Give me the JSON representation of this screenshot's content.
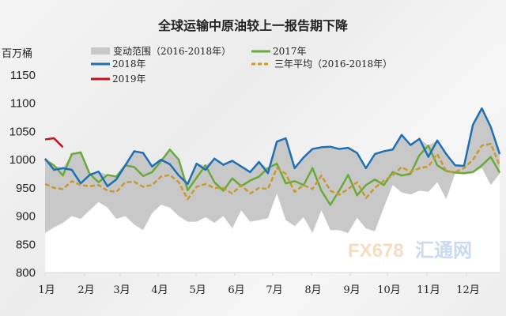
{
  "chart_data": {
    "type": "line",
    "title": "全球运输中原油较上一报告期下降",
    "ylabel": "百万桶",
    "ylim": [
      800,
      1150
    ],
    "yticks": [
      "800",
      "850",
      "900",
      "950",
      "1000",
      "1050",
      "1100",
      "1150"
    ],
    "xticks": [
      "1月",
      "2月",
      "3月",
      "4月",
      "5月",
      "6月",
      "7月",
      "8月",
      "9月",
      "10月",
      "11月",
      "12月"
    ],
    "x_unit": "week",
    "range": {
      "name": "变动范围（2016-2018年）",
      "color": "#c8c8c8",
      "low": [
        870,
        880,
        888,
        900,
        895,
        910,
        925,
        915,
        895,
        900,
        885,
        875,
        905,
        920,
        915,
        900,
        890,
        890,
        898,
        888,
        900,
        878,
        910,
        890,
        893,
        896,
        940,
        893,
        882,
        898,
        870,
        910,
        875,
        875,
        870,
        897,
        878,
        873,
        915,
        955,
        942,
        938,
        945,
        943,
        960,
        930,
        975,
        977,
        977,
        985,
        955,
        975
      ],
      "high": [
        1002,
        990,
        985,
        1010,
        1013,
        975,
        979,
        973,
        970,
        990,
        1015,
        1012,
        988,
        1000,
        1018,
        1000,
        957,
        993,
        990,
        1002,
        991,
        998,
        988,
        978,
        996,
        985,
        1032,
        1038,
        985,
        1004,
        1019,
        1022,
        1023,
        1019,
        1021,
        1012,
        985,
        1010,
        1015,
        1018,
        1044,
        1026,
        1037,
        1025,
        1034,
        1010,
        990,
        989,
        1062,
        1091,
        1058,
        1010
      ]
    },
    "series": [
      {
        "name": "2017年",
        "color": "#6aaa3a",
        "dash": false,
        "values": [
          1000,
          990,
          972,
          1010,
          1013,
          975,
          960,
          973,
          970,
          990,
          987,
          971,
          978,
          997,
          1018,
          1000,
          946,
          968,
          990,
          960,
          945,
          967,
          953,
          963,
          970,
          985,
          993,
          958,
          962,
          955,
          985,
          945,
          920,
          945,
          973,
          937,
          955,
          965,
          955,
          978,
          972,
          975,
          1008,
          1025,
          990,
          980,
          977,
          976,
          978,
          990,
          1005,
          977
        ]
      },
      {
        "name": "2018年",
        "color": "#1f6fb4",
        "dash": false,
        "values": [
          1002,
          982,
          985,
          982,
          958,
          973,
          979,
          953,
          965,
          990,
          1015,
          1012,
          988,
          1000,
          992,
          972,
          957,
          993,
          982,
          1002,
          991,
          998,
          988,
          978,
          996,
          976,
          1032,
          1038,
          985,
          1004,
          1019,
          1022,
          1023,
          1019,
          1021,
          1012,
          985,
          1010,
          1015,
          1018,
          1044,
          1026,
          1037,
          1005,
          1034,
          1010,
          990,
          989,
          1062,
          1091,
          1058,
          1010
        ]
      },
      {
        "name": "三年平均（2016-2018年）",
        "color": "#c99a30",
        "dash": true,
        "values": [
          957,
          950,
          948,
          962,
          955,
          953,
          955,
          945,
          943,
          960,
          961,
          952,
          955,
          970,
          973,
          960,
          930,
          952,
          957,
          950,
          950,
          940,
          955,
          940,
          950,
          948,
          985,
          975,
          943,
          955,
          948,
          972,
          945,
          938,
          948,
          960,
          932,
          950,
          963,
          972,
          987,
          978,
          985,
          988,
          1010,
          980,
          978,
          985,
          1000,
          1025,
          1028,
          990
        ]
      },
      {
        "name": "2019年",
        "color": "#c0141c",
        "dash": false,
        "values": [
          1036,
          1038,
          1022
        ]
      }
    ],
    "grid": false,
    "legend_position": "top"
  },
  "watermark": "FX678 汇通网"
}
